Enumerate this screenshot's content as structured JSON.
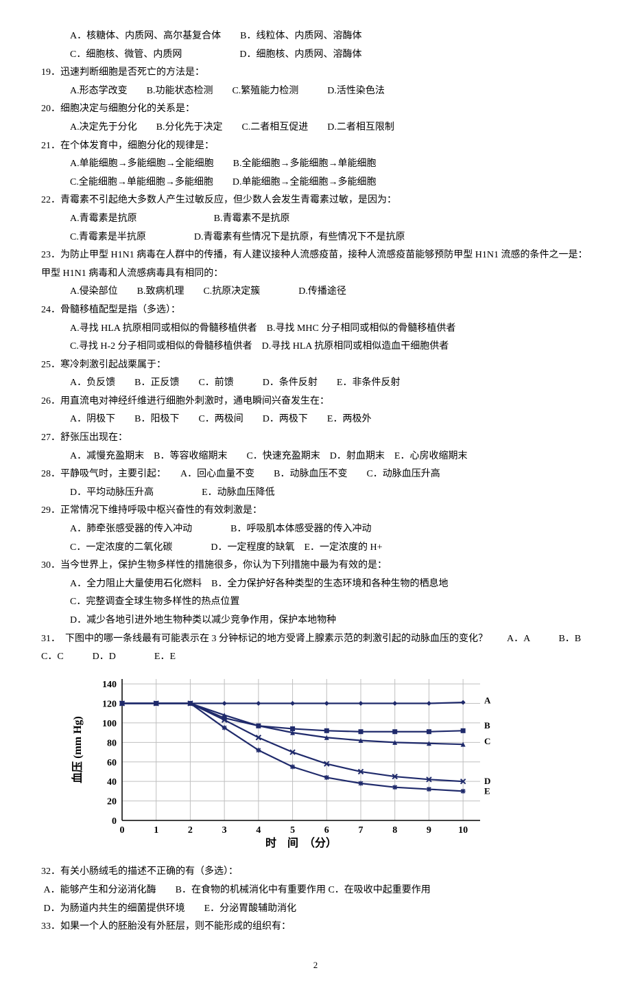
{
  "lines": {
    "q18a": "　A．核糖体、内质网、高尔基复合体　　B．线粒体、内质网、溶酶体",
    "q18b": "　C．细胞核、微管、内质网　　　　　　D．细胞核、内质网、溶酶体",
    "q19": "19．迅速判断细胞是否死亡的方法是：",
    "q19a": "　A.形态学改变　　B.功能状态检测　　C.繁殖能力检测　　　D.活性染色法",
    "q20": "20．细胞决定与细胞分化的关系是：",
    "q20a": "　A.决定先于分化　　B.分化先于决定　　C.二者相互促进　　D.二者相互限制",
    "q21": "21．在个体发育中，细胞分化的规律是：",
    "q21a": "　A.单能细胞→多能细胞→全能细胞　　B.全能细胞→多能细胞→单能细胞",
    "q21b": "　C.全能细胞→单能细胞→多能细胞　　D.单能细胞→全能细胞→多能细胞",
    "q22": "22．青霉素不引起绝大多数人产生过敏反应，但少数人会发生青霉素过敏，是因为：",
    "q22a": "　A.青霉素是抗原　　　　　　　　B.青霉素不是抗原",
    "q22b": "　C.青霉素是半抗原　　　　　D.青霉素有些情况下是抗原，有些情况下不是抗原",
    "q23": "23．为防止甲型 H1N1 病毒在人群中的传播，有人建议接种人流感疫苗，接种人流感疫苗能够预防甲型 H1N1 流感的条件之一是：甲型 H1N1 病毒和人流感病毒具有相同的：",
    "q23a": "　A.侵染部位　　B.致病机理　　C.抗原决定簇　　　　D.传播途径",
    "q24": "24．骨髓移植配型是指（多选）：",
    "q24a": "　A.寻找 HLA 抗原相同或相似的骨髓移植供者　B.寻找 MHC 分子相同或相似的骨髓移植供者",
    "q24b": "　C.寻找 H-2 分子相同或相似的骨髓移植供者　D.寻找 HLA 抗原相同或相似造血干细胞供者",
    "q25": "25．寒冷刺激引起战栗属于：",
    "q25a": "　A．负反馈　　B．正反馈　　C．前馈　　　D．条件反射　　E．非条件反射",
    "q26": "26．用直流电对神经纤维进行细胞外刺激时，通电瞬间兴奋发生在：",
    "q26a": "　A．阴极下　　B．阳极下　　C．两极间　　D．两极下　　E．两极外",
    "q27": "27．舒张压出现在：",
    "q27a": "　A．减慢充盈期末　B．等容收缩期末　　C．快速充盈期末　D．射血期末　E．心房收缩期末",
    "q28": "28．平静吸气时，主要引起：　　A．回心血量不变　　B．动脉血压不变　　C．动脉血压升高",
    "q28a": "　D．平均动脉压升高　　　　　E．动脉血压降低",
    "q29": "29．正常情况下维持呼吸中枢兴奋性的有效刺激是：",
    "q29a": "　A．肺牵张感受器的传入冲动　　　　B．呼吸肌本体感受器的传入冲动",
    "q29b": "　C．一定浓度的二氧化碳　　　　D．一定程度的缺氧　E．一定浓度的 H+",
    "q30": "30．当今世界上，保护生物多样性的措施很多，你认为下列措施中最为有效的是：",
    "q30a": "　A．全力阻止大量使用石化燃料　B．全力保护好各种类型的生态环境和各种生物的栖息地",
    "q30b": "　C．完整调查全球生物多样性的热点位置",
    "q30c": "　D．减少各地引进外地生物种类以减少竞争作用，保护本地物种",
    "q31": "31．　下图中的哪一条线最有可能表示在 3 分钟标记的地方受肾上腺素示范的刺激引起的动脉血压的变化？　　A．A　　　B．B　　　C．C　　　D．D　　　　E．E",
    "q32": "32．有关小肠绒毛的描述不正确的有（多选）：",
    "q32a": " A．能够产生和分泌消化酶　　B．在食物的机械消化中有重要作用 C．在吸收中起重要作用",
    "q32b": " D．为肠道内共生的细菌提供环境　　E．分泌胃酸辅助消化",
    "q33": "33．如果一个人的胚胎没有外胚层，则不能形成的组织有："
  },
  "chart": {
    "type": "line",
    "xlabel": "时　间　（分）",
    "ylabel": "血压 (mm Hg)",
    "xlim": [
      0,
      10.5
    ],
    "ylim": [
      0,
      145
    ],
    "xticks": [
      0,
      1,
      2,
      3,
      4,
      5,
      6,
      7,
      8,
      9,
      10
    ],
    "yticks": [
      0,
      20,
      40,
      60,
      80,
      100,
      120,
      140
    ],
    "background_color": "#ffffff",
    "grid_color": "#bfbfbf",
    "axis_color": "#000000",
    "tick_fontsize": 14,
    "label_fontsize": 16,
    "series_label_fontsize": 13,
    "line_width": 2.2,
    "marker_size": 7,
    "series": [
      {
        "name": "A",
        "color": "#1f2a6b",
        "marker": "diamond",
        "label_y": 123,
        "values": [
          120,
          120,
          120,
          120,
          120,
          120,
          120,
          120,
          120,
          120,
          121
        ]
      },
      {
        "name": "B",
        "color": "#1f2a6b",
        "marker": "square",
        "label_y": 97,
        "values": [
          120,
          120,
          120,
          105,
          97,
          94,
          92,
          91,
          91,
          91,
          92
        ]
      },
      {
        "name": "C",
        "color": "#1f2a6b",
        "marker": "triangle",
        "label_y": 81,
        "values": [
          120,
          120,
          120,
          108,
          97,
          90,
          85,
          82,
          80,
          79,
          78
        ]
      },
      {
        "name": "D",
        "color": "#1f2a6b",
        "marker": "x",
        "label_y": 40,
        "values": [
          120,
          120,
          120,
          103,
          85,
          70,
          58,
          50,
          45,
          42,
          40
        ]
      },
      {
        "name": "E",
        "color": "#1f2a6b",
        "marker": "star",
        "label_y": 30,
        "values": [
          120,
          120,
          120,
          95,
          72,
          55,
          44,
          38,
          34,
          32,
          30
        ]
      }
    ]
  },
  "page_number": "2"
}
